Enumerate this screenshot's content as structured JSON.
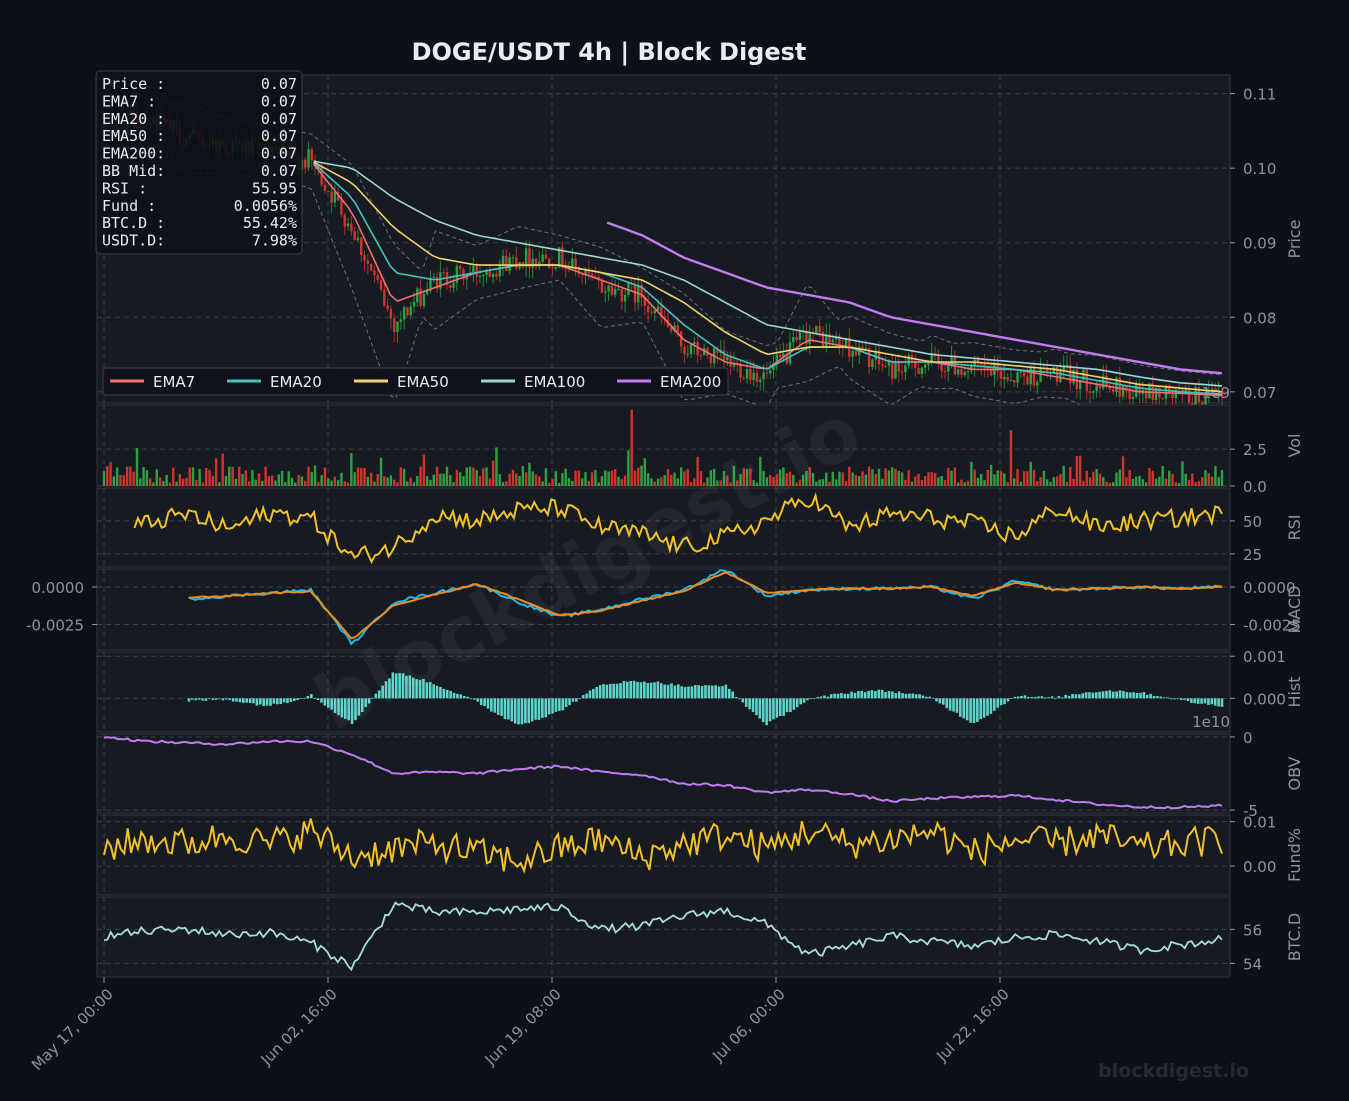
{
  "title": "DOGE/USDT  4h  |  Block Digest",
  "watermark": "blockdigest.io",
  "footer_brand": "blockdigest.io",
  "colors": {
    "background": "#0d1117",
    "panel": "#161b22",
    "grid": "#3a4048",
    "up": "#2ea043",
    "down": "#d0342c",
    "ema7": "#f07070",
    "ema20": "#45c1c0",
    "ema50": "#f2d36b",
    "ema100": "#9fd6d4",
    "ema200": "#c27cf0",
    "rsi": "#f2c029",
    "macd": "#22b7e8",
    "signal": "#f08a1c",
    "hist": "#5fd4cc",
    "obv": "#c27cf0",
    "fund": "#f2c029",
    "btcd": "#a9dcdc"
  },
  "info_box": [
    {
      "label": "Price :",
      "value": "0.07"
    },
    {
      "label": "EMA7  :",
      "value": "0.07"
    },
    {
      "label": "EMA20 :",
      "value": "0.07"
    },
    {
      "label": "EMA50 :",
      "value": "0.07"
    },
    {
      "label": "EMA200:",
      "value": "0.07"
    },
    {
      "label": "BB Mid:",
      "value": "0.07"
    },
    {
      "label": "RSI   :",
      "value": "55.95"
    },
    {
      "label": "Fund  :",
      "value": "0.0056%"
    },
    {
      "label": "BTC.D :",
      "value": "55.42%"
    },
    {
      "label": "USDT.D:",
      "value": "7.98%"
    }
  ],
  "legend": [
    "EMA7",
    "EMA20",
    "EMA50",
    "EMA100",
    "EMA200"
  ],
  "x_ticks": [
    "May 17, 00:00",
    "Jun 02, 16:00",
    "Jun 19, 08:00",
    "Jul 06, 00:00",
    "Jul 22, 16:00"
  ],
  "chart_data": [
    {
      "type": "candlestick",
      "panel": "price",
      "ylabel": "Price",
      "ylim": [
        0.0685,
        0.1125
      ],
      "yticks": [
        "0.07",
        "0.08",
        "0.09",
        "0.10",
        "0.11"
      ],
      "corner_label": "1e9",
      "series": [
        {
          "name": "Close",
          "x": [
            "May 17",
            "May 20",
            "May 23",
            "May 26",
            "May 29",
            "Jun 01",
            "Jun 03",
            "Jun 05",
            "Jun 07",
            "Jun 10",
            "Jun 13",
            "Jun 16",
            "Jun 19",
            "Jun 22",
            "Jun 25",
            "Jun 28",
            "Jul 01",
            "Jul 04",
            "Jul 07",
            "Jul 10",
            "Jul 13",
            "Jul 16",
            "Jul 19",
            "Jul 22",
            "Jul 25",
            "Jul 28",
            "Jul 31",
            "Aug 03"
          ],
          "values": [
            0.105,
            0.107,
            0.104,
            0.103,
            0.102,
            0.101,
            0.092,
            0.079,
            0.085,
            0.086,
            0.088,
            0.088,
            0.084,
            0.083,
            0.076,
            0.074,
            0.072,
            0.078,
            0.076,
            0.073,
            0.074,
            0.073,
            0.072,
            0.0725,
            0.071,
            0.07,
            0.0695,
            0.069
          ]
        },
        {
          "name": "EMA7",
          "values": [
            null,
            null,
            null,
            null,
            null,
            0.101,
            0.094,
            0.082,
            0.084,
            0.086,
            0.087,
            0.087,
            0.085,
            0.083,
            0.077,
            0.074,
            0.073,
            0.077,
            0.076,
            0.074,
            0.074,
            0.073,
            0.073,
            0.072,
            0.071,
            0.07,
            0.0698,
            0.0695
          ]
        },
        {
          "name": "EMA20",
          "values": [
            null,
            null,
            null,
            null,
            null,
            0.101,
            0.096,
            0.086,
            0.085,
            0.086,
            0.087,
            0.087,
            0.086,
            0.084,
            0.079,
            0.075,
            0.073,
            0.076,
            0.076,
            0.074,
            0.074,
            0.0735,
            0.073,
            0.0725,
            0.0715,
            0.0705,
            0.07,
            0.0697
          ]
        },
        {
          "name": "EMA50",
          "values": [
            null,
            null,
            null,
            null,
            null,
            0.101,
            0.098,
            0.092,
            0.088,
            0.087,
            0.087,
            0.087,
            0.086,
            0.085,
            0.082,
            0.078,
            0.075,
            0.076,
            0.076,
            0.075,
            0.074,
            0.074,
            0.0735,
            0.073,
            0.072,
            0.071,
            0.0705,
            0.07
          ]
        },
        {
          "name": "EMA100",
          "values": [
            null,
            null,
            null,
            null,
            null,
            0.101,
            0.1,
            0.096,
            0.093,
            0.091,
            0.09,
            0.089,
            0.088,
            0.087,
            0.085,
            0.082,
            0.079,
            0.078,
            0.077,
            0.076,
            0.075,
            0.0745,
            0.074,
            0.0735,
            0.073,
            0.072,
            0.0712,
            0.0708
          ]
        },
        {
          "name": "EMA200",
          "values": [
            null,
            null,
            null,
            null,
            null,
            null,
            null,
            null,
            null,
            null,
            null,
            null,
            0.093,
            0.091,
            0.088,
            0.086,
            0.084,
            0.083,
            0.082,
            0.08,
            0.079,
            0.078,
            0.077,
            0.076,
            0.075,
            0.074,
            0.073,
            0.0725
          ]
        }
      ]
    },
    {
      "type": "bar",
      "panel": "volume",
      "ylabel": "Vol",
      "ylim": [
        0,
        5.5
      ],
      "yticks": [
        "0.0",
        "2.5"
      ],
      "note": "values x1e9",
      "peaks": [
        {
          "x": "Jun 14",
          "value": 5.2
        },
        {
          "x": "Jul 22",
          "value": 3.8
        }
      ]
    },
    {
      "type": "line",
      "panel": "rsi",
      "ylabel": "RSI",
      "ylim": [
        15,
        75
      ],
      "yticks": [
        "25",
        "50"
      ],
      "series": [
        {
          "name": "RSI",
          "values": [
            38,
            48,
            55,
            44,
            56,
            52,
            22,
            30,
            55,
            50,
            58,
            60,
            45,
            40,
            30,
            38,
            50,
            68,
            45,
            55,
            52,
            48,
            38,
            60,
            45,
            50,
            52,
            56
          ]
        }
      ]
    },
    {
      "type": "line",
      "panel": "macd",
      "ylabel": "MACD",
      "ylim": [
        -0.0042,
        0.0012
      ],
      "yticks": [
        "0.0000",
        "-0.0025"
      ],
      "left_yticks": [
        "0.0000",
        "-0.0025"
      ],
      "series": [
        {
          "name": "MACD",
          "values": [
            null,
            null,
            -0.0008,
            -0.0006,
            -0.0004,
            -0.0002,
            -0.0038,
            -0.001,
            -0.0004,
            0.0002,
            -0.001,
            -0.002,
            -0.0015,
            -0.0008,
            -0.0002,
            0.0012,
            -0.0006,
            -0.0002,
            -0.0001,
            -0.0001,
            0.0,
            -0.0008,
            0.0004,
            -0.0002,
            -0.0001,
            0.0,
            -0.0001,
            0.0
          ]
        },
        {
          "name": "Signal",
          "values": [
            null,
            null,
            -0.0007,
            -0.0006,
            -0.0004,
            -0.0003,
            -0.0035,
            -0.0012,
            -0.0005,
            0.0002,
            -0.0008,
            -0.0019,
            -0.0016,
            -0.0009,
            -0.0003,
            0.001,
            -0.0004,
            -0.0002,
            -0.0001,
            -0.0001,
            0.0,
            -0.0006,
            0.0003,
            -0.0002,
            -0.0001,
            0.0,
            -0.0001,
            0.0
          ]
        }
      ]
    },
    {
      "type": "bar",
      "panel": "hist",
      "ylabel": "Hist",
      "ylim": [
        -0.0008,
        0.0011
      ],
      "yticks": [
        "0.001",
        "0.000"
      ],
      "corner_label": "1e10"
    },
    {
      "type": "line",
      "panel": "obv",
      "ylabel": "OBV",
      "ylim": [
        -5.2,
        0.2
      ],
      "yticks": [
        "0",
        "-5"
      ],
      "note": "values x1e10",
      "series": [
        {
          "name": "OBV",
          "values": [
            0,
            -0.3,
            -0.4,
            -0.5,
            -0.3,
            -0.3,
            -1.2,
            -2.5,
            -2.4,
            -2.5,
            -2.2,
            -2.0,
            -2.4,
            -2.6,
            -3.2,
            -3.3,
            -3.8,
            -3.6,
            -3.9,
            -4.4,
            -4.2,
            -4.1,
            -4.0,
            -4.3,
            -4.6,
            -4.8,
            -4.8,
            -4.7
          ]
        }
      ]
    },
    {
      "type": "line",
      "panel": "funding",
      "ylabel": "Fund%",
      "ylim": [
        -0.0065,
        0.0115
      ],
      "yticks": [
        "0.01",
        "0.00"
      ],
      "series": [
        {
          "name": "Funding",
          "values": [
            0.004,
            0.006,
            0.005,
            0.007,
            0.005,
            0.008,
            0.002,
            0.004,
            0.005,
            0.003,
            0.001,
            0.004,
            0.006,
            0.002,
            0.005,
            0.007,
            0.004,
            0.008,
            0.005,
            0.006,
            0.008,
            0.003,
            0.006,
            0.005,
            0.007,
            0.004,
            0.005,
            0.006
          ]
        }
      ]
    },
    {
      "type": "line",
      "panel": "btc_dominance",
      "ylabel": "BTC.D",
      "ylim": [
        53.2,
        57.9
      ],
      "yticks": [
        "56",
        "54"
      ],
      "series": [
        {
          "name": "BTC.D",
          "values": [
            55.6,
            55.9,
            56.0,
            55.7,
            55.8,
            55.2,
            53.8,
            57.5,
            57.0,
            57.0,
            57.2,
            57.3,
            56.0,
            56.2,
            56.8,
            57.1,
            56.3,
            54.5,
            55.0,
            55.6,
            55.3,
            55.0,
            55.5,
            55.7,
            55.3,
            54.8,
            55.1,
            55.4
          ]
        }
      ]
    }
  ]
}
